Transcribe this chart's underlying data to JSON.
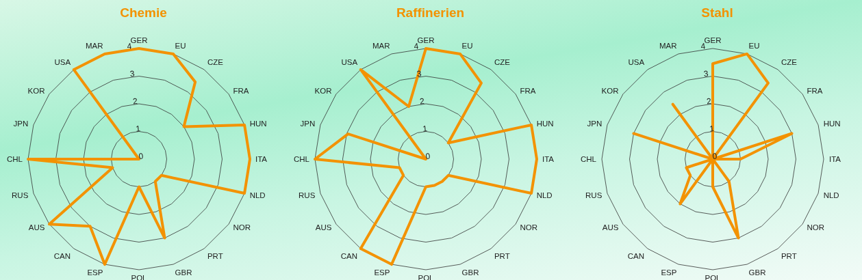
{
  "chart_data": [
    {
      "type": "radar",
      "title": "Chemie",
      "categories": [
        "GER",
        "EU",
        "CZE",
        "FRA",
        "HUN",
        "ITA",
        "NLD",
        "NOR",
        "PRT",
        "GBR",
        "POL",
        "ESP",
        "CAN",
        "AUS",
        "RUS",
        "CHL",
        "JPN",
        "KOR",
        "USA",
        "MAR"
      ],
      "series": [
        {
          "color": "#f39200",
          "values": [
            4,
            4,
            3.45,
            2,
            4,
            4,
            4,
            1,
            1,
            3,
            1,
            4,
            3,
            4,
            1,
            4,
            0,
            0,
            4,
            4
          ]
        }
      ],
      "ylim": [
        0,
        4
      ],
      "yticks": [
        0,
        1,
        2,
        3,
        4
      ],
      "grid": true,
      "legend": false,
      "marker": "none",
      "line_style": "solid"
    },
    {
      "type": "radar",
      "title": "Raffinerien",
      "categories": [
        "GER",
        "EU",
        "CZE",
        "FRA",
        "HUN",
        "ITA",
        "NLD",
        "NOR",
        "PRT",
        "GBR",
        "POL",
        "ESP",
        "CAN",
        "AUS",
        "RUS",
        "CHL",
        "JPN",
        "KOR",
        "USA",
        "MAR"
      ],
      "series": [
        {
          "color": "#f39200",
          "values": [
            4,
            4,
            3.4,
            1,
            4,
            4,
            4,
            1,
            1,
            1,
            1,
            4,
            4,
            1,
            1,
            4,
            2.95,
            0,
            4,
            2
          ]
        }
      ],
      "ylim": [
        0,
        4
      ],
      "yticks": [
        0,
        1,
        2,
        3,
        4
      ],
      "grid": true,
      "legend": false,
      "marker": "none",
      "line_style": "solid"
    },
    {
      "type": "radar",
      "title": "Stahl",
      "categories": [
        "GER",
        "EU",
        "CZE",
        "FRA",
        "HUN",
        "ITA",
        "NLD",
        "NOR",
        "PRT",
        "GBR",
        "POL",
        "ESP",
        "CAN",
        "AUS",
        "RUS",
        "CHL",
        "JPN",
        "KOR",
        "USA",
        "MAR"
      ],
      "series": [
        {
          "color": "#f39200",
          "values": [
            3.45,
            4,
            3.4,
            0,
            3,
            1,
            0,
            0,
            1,
            3,
            1,
            0,
            2,
            1,
            1,
            0,
            3,
            0,
            2.45,
            0
          ]
        }
      ],
      "ylim": [
        0,
        4
      ],
      "yticks": [
        0,
        1,
        2,
        3,
        4
      ],
      "grid": true,
      "legend": false,
      "marker": "none",
      "line_style": "solid"
    }
  ]
}
